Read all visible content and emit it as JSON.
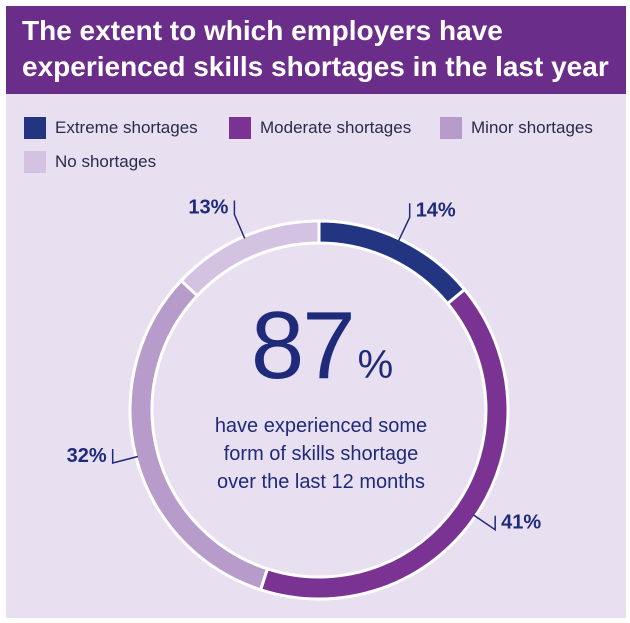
{
  "title": {
    "line1": "The extent to which employers have",
    "line2": "experienced skills shortages in the last year"
  },
  "legend": [
    {
      "label": "Extreme shortages",
      "color": "#233580"
    },
    {
      "label": "Moderate shortages",
      "color": "#7b3393"
    },
    {
      "label": "Minor shortages",
      "color": "#b79bcb"
    },
    {
      "label": "No shortages",
      "color": "#d3c2e1"
    }
  ],
  "center": {
    "number": "87",
    "unit": "%",
    "caption_line1": "have experienced some",
    "caption_line2": "form of skills shortage",
    "caption_line3": "over the last 12 months"
  },
  "chart_data": {
    "type": "pie",
    "donut": true,
    "start_position": "top",
    "direction": "clockwise",
    "categories": [
      "Extreme shortages",
      "Moderate shortages",
      "Minor shortages",
      "No shortages"
    ],
    "values": [
      14,
      41,
      32,
      13
    ],
    "value_labels": [
      "14%",
      "41%",
      "32%",
      "13%"
    ],
    "colors": [
      "#233580",
      "#7b3393",
      "#b79bcb",
      "#d3c2e1"
    ]
  }
}
